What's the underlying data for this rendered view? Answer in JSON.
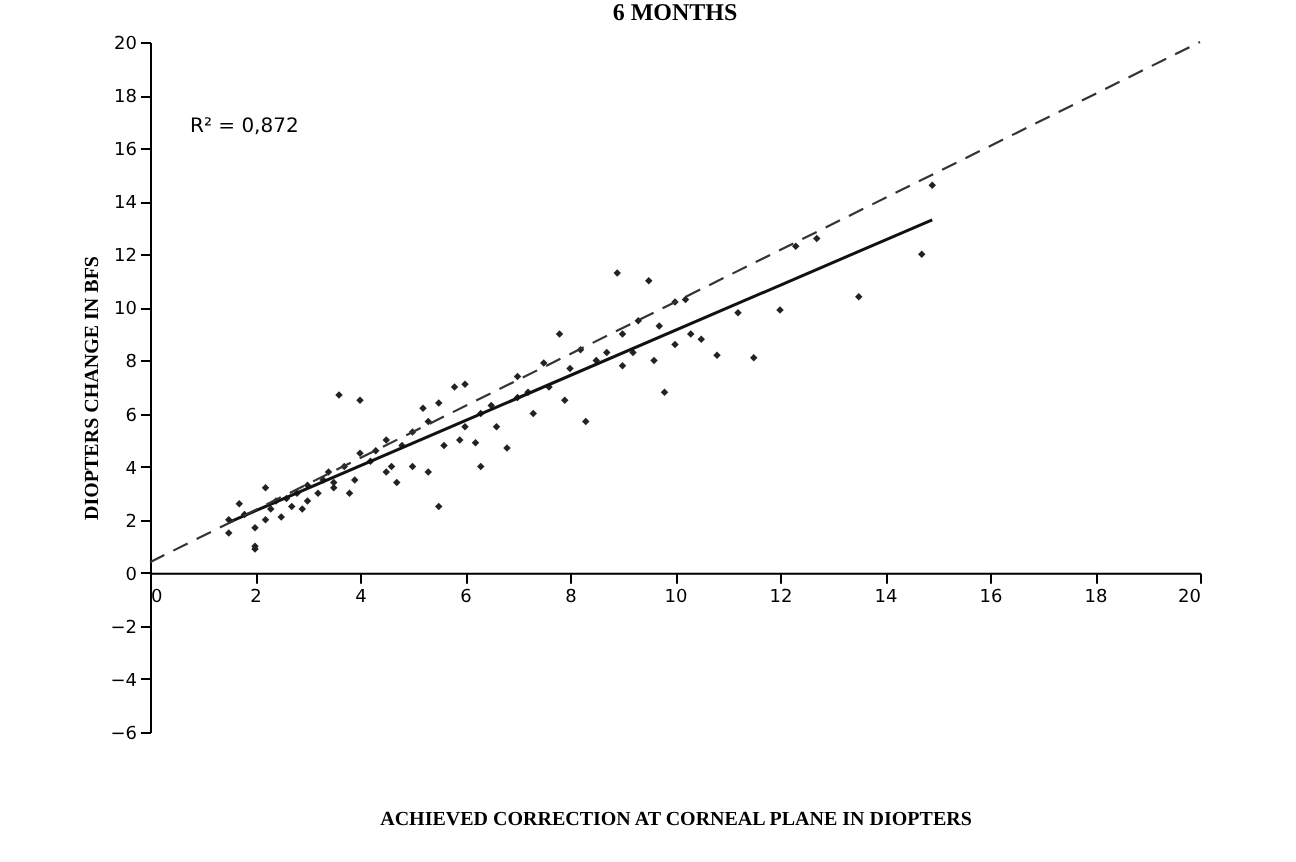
{
  "chart_data": {
    "type": "scatter",
    "title": "6 MONTHS",
    "xlabel": "ACHIEVED CORRECTION AT CORNEAL PLANE IN DIOPTERS",
    "ylabel": "DIOPTERS CHANGE IN BFS",
    "annotations": [
      "R² = 0,872"
    ],
    "xlim": [
      0,
      20
    ],
    "xticks": [
      0,
      2,
      4,
      6,
      8,
      10,
      12,
      14,
      16,
      18,
      20
    ],
    "ylim": [
      -6,
      20
    ],
    "yticks": [
      -6,
      -4,
      -2,
      0,
      2,
      4,
      6,
      8,
      10,
      12,
      14,
      16,
      18,
      20
    ],
    "grid": false,
    "series": [
      {
        "marker": "diamond",
        "color": "#222222",
        "x": [
          1.5,
          1.5,
          1.7,
          1.8,
          2.0,
          2.0,
          2.0,
          2.2,
          2.2,
          2.3,
          2.4,
          2.5,
          2.6,
          2.7,
          2.8,
          2.9,
          3.0,
          3.0,
          3.2,
          3.3,
          3.4,
          3.5,
          3.5,
          3.6,
          3.7,
          3.8,
          3.9,
          4.0,
          4.0,
          4.2,
          4.3,
          4.5,
          4.5,
          4.6,
          4.7,
          4.8,
          5.0,
          5.0,
          5.2,
          5.3,
          5.3,
          5.5,
          5.5,
          5.6,
          5.8,
          5.9,
          6.0,
          6.0,
          6.2,
          6.3,
          6.3,
          6.5,
          6.6,
          6.8,
          7.0,
          7.0,
          7.2,
          7.3,
          7.5,
          7.6,
          7.8,
          7.9,
          8.0,
          8.2,
          8.3,
          8.5,
          8.7,
          8.9,
          9.0,
          9.0,
          9.2,
          9.3,
          9.5,
          9.6,
          9.7,
          9.8,
          10.0,
          10.0,
          10.2,
          10.3,
          10.5,
          10.8,
          11.2,
          11.5,
          12.0,
          12.3,
          12.7,
          13.5,
          14.7,
          14.9
        ],
        "values": [
          1.5,
          2.0,
          2.6,
          2.2,
          1.0,
          0.9,
          1.7,
          2.0,
          3.2,
          2.4,
          2.7,
          2.1,
          2.8,
          2.5,
          3.0,
          2.4,
          3.3,
          2.7,
          3.0,
          3.5,
          3.8,
          3.2,
          3.4,
          6.7,
          4.0,
          3.0,
          3.5,
          4.5,
          6.5,
          4.2,
          4.6,
          3.8,
          5.0,
          4.0,
          3.4,
          4.8,
          5.3,
          4.0,
          6.2,
          5.7,
          3.8,
          2.5,
          6.4,
          4.8,
          7.0,
          5.0,
          7.1,
          5.5,
          4.9,
          4.0,
          6.0,
          6.3,
          5.5,
          4.7,
          6.6,
          7.4,
          6.8,
          6.0,
          7.9,
          7.0,
          9.0,
          6.5,
          7.7,
          8.4,
          5.7,
          8.0,
          8.3,
          11.3,
          9.0,
          7.8,
          8.3,
          9.5,
          11.0,
          8.0,
          9.3,
          6.8,
          10.2,
          8.6,
          10.3,
          9.0,
          8.8,
          8.2,
          9.8,
          8.1,
          9.9,
          12.3,
          12.6,
          10.4,
          12.0,
          14.6
        ]
      },
      {
        "type": "line",
        "marker": "none",
        "color": "#111111",
        "line_style": "solid",
        "x": [
          1.5,
          14.9
        ],
        "values": [
          1.9,
          13.3
        ]
      },
      {
        "type": "line",
        "marker": "none",
        "color": "#333333",
        "line_style": "dashed",
        "x": [
          0,
          20
        ],
        "values": [
          0.4,
          20
        ]
      }
    ]
  }
}
